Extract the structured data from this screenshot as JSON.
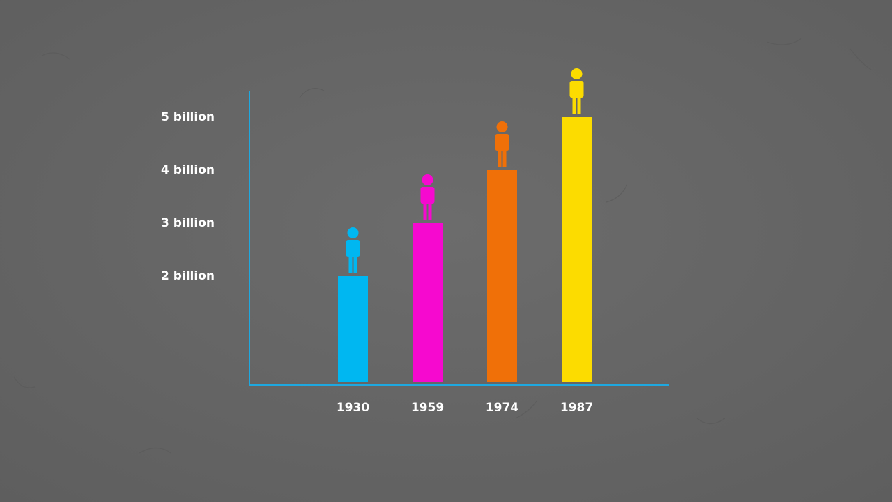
{
  "chart_data": {
    "type": "bar",
    "categories": [
      "1930",
      "1959",
      "1974",
      "1987"
    ],
    "values": [
      2,
      3,
      4,
      5
    ],
    "colors": [
      "#00b7f1",
      "#f609cf",
      "#f07008",
      "#fcdc00"
    ],
    "ylim": [
      0,
      5.5
    ],
    "yticks": [
      {
        "value": 2,
        "label": "2 billion"
      },
      {
        "value": 3,
        "label": "3 billion"
      },
      {
        "value": 4,
        "label": "4 billion"
      },
      {
        "value": 5,
        "label": "5 billion"
      }
    ],
    "grid": false
  }
}
